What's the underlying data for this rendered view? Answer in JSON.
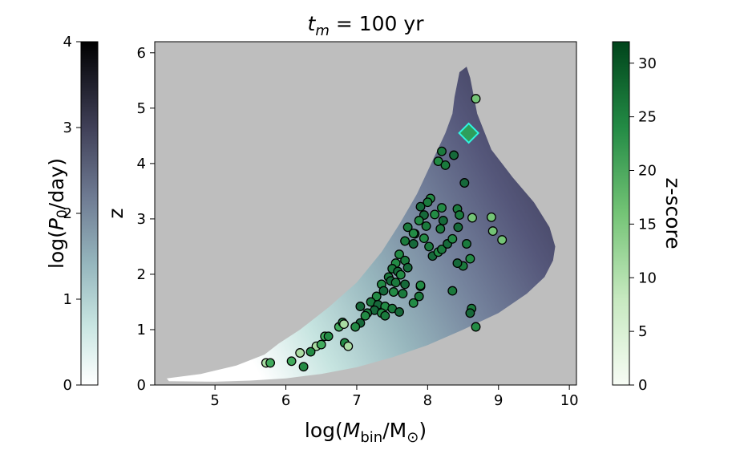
{
  "chart_data": {
    "type": "scatter",
    "title": "t_m = 100 yr",
    "title_parts": {
      "var": "t",
      "sub": "m",
      "rest": " = 100 yr"
    },
    "xlabel": "log(M_bin/M_⊙)",
    "xlabel_parts": {
      "pre": "log(",
      "var": "M",
      "sub": "bin",
      "post": "/M",
      "sun": "⊙",
      "close": ")"
    },
    "ylabel": "z",
    "xlim": [
      4.15,
      10.1
    ],
    "ylim": [
      0,
      6.2
    ],
    "xticks": [
      "5",
      "6",
      "7",
      "8",
      "9",
      "10"
    ],
    "yticks": [
      "0",
      "1",
      "2",
      "3",
      "4",
      "5",
      "6"
    ],
    "background_color": "#bebebe",
    "region": {
      "description": "allowed parameter space shaded by log(P0/day)",
      "boundary": [
        [
          4.32,
          0.12
        ],
        [
          4.35,
          0.07
        ],
        [
          5.0,
          0.06
        ],
        [
          5.5,
          0.08
        ],
        [
          6.0,
          0.12
        ],
        [
          6.5,
          0.2
        ],
        [
          7.0,
          0.32
        ],
        [
          7.5,
          0.5
        ],
        [
          8.0,
          0.72
        ],
        [
          8.5,
          1.0
        ],
        [
          9.0,
          1.3
        ],
        [
          9.4,
          1.65
        ],
        [
          9.65,
          1.95
        ],
        [
          9.77,
          2.25
        ],
        [
          9.8,
          2.5
        ],
        [
          9.72,
          2.85
        ],
        [
          9.5,
          3.3
        ],
        [
          9.2,
          3.75
        ],
        [
          8.9,
          4.25
        ],
        [
          8.7,
          4.9
        ],
        [
          8.6,
          5.55
        ],
        [
          8.55,
          5.75
        ],
        [
          8.45,
          5.65
        ],
        [
          8.38,
          5.2
        ],
        [
          8.35,
          4.9
        ],
        [
          8.25,
          4.55
        ],
        [
          8.05,
          4.0
        ],
        [
          7.85,
          3.45
        ],
        [
          7.6,
          2.9
        ],
        [
          7.35,
          2.4
        ],
        [
          7.0,
          1.85
        ],
        [
          6.6,
          1.4
        ],
        [
          6.2,
          1.0
        ],
        [
          5.9,
          0.75
        ],
        [
          5.7,
          0.55
        ],
        [
          5.3,
          0.35
        ],
        [
          4.8,
          0.2
        ],
        [
          4.32,
          0.12
        ]
      ]
    },
    "highlight_marker": {
      "shape": "diamond",
      "x": 8.58,
      "y": 4.55,
      "color": "#2e9e5b",
      "edge": "#2ff5e0"
    },
    "points": [
      [
        8.68,
        5.17
      ],
      [
        8.2,
        4.22
      ],
      [
        8.37,
        4.15
      ],
      [
        8.15,
        4.04
      ],
      [
        8.25,
        3.97
      ],
      [
        8.52,
        3.65
      ],
      [
        8.04,
        3.37
      ],
      [
        8.0,
        3.3
      ],
      [
        7.9,
        3.22
      ],
      [
        8.2,
        3.2
      ],
      [
        8.42,
        3.18
      ],
      [
        7.95,
        3.07
      ],
      [
        8.1,
        3.08
      ],
      [
        8.45,
        3.07
      ],
      [
        8.63,
        3.02
      ],
      [
        7.88,
        2.97
      ],
      [
        7.98,
        2.87
      ],
      [
        8.22,
        2.97
      ],
      [
        8.9,
        3.03
      ],
      [
        7.72,
        2.85
      ],
      [
        7.82,
        2.73
      ],
      [
        7.8,
        2.74
      ],
      [
        8.18,
        2.82
      ],
      [
        8.43,
        2.85
      ],
      [
        8.92,
        2.78
      ],
      [
        7.68,
        2.6
      ],
      [
        7.8,
        2.55
      ],
      [
        7.95,
        2.65
      ],
      [
        8.02,
        2.5
      ],
      [
        8.07,
        2.33
      ],
      [
        8.15,
        2.4
      ],
      [
        8.2,
        2.45
      ],
      [
        8.28,
        2.55
      ],
      [
        8.35,
        2.64
      ],
      [
        8.55,
        2.55
      ],
      [
        9.05,
        2.62
      ],
      [
        7.6,
        2.36
      ],
      [
        7.68,
        2.25
      ],
      [
        7.72,
        2.12
      ],
      [
        7.55,
        2.2
      ],
      [
        7.5,
        2.1
      ],
      [
        7.58,
        2.05
      ],
      [
        7.62,
        1.99
      ],
      [
        7.45,
        1.95
      ],
      [
        7.48,
        1.88
      ],
      [
        7.35,
        1.82
      ],
      [
        7.55,
        1.85
      ],
      [
        7.68,
        1.82
      ],
      [
        7.52,
        1.68
      ],
      [
        7.65,
        1.65
      ],
      [
        7.38,
        1.7
      ],
      [
        7.28,
        1.6
      ],
      [
        7.2,
        1.5
      ],
      [
        7.3,
        1.45
      ],
      [
        7.4,
        1.42
      ],
      [
        7.5,
        1.38
      ],
      [
        7.25,
        1.35
      ],
      [
        7.35,
        1.3
      ],
      [
        7.15,
        1.3
      ],
      [
        7.05,
        1.42
      ],
      [
        7.12,
        1.25
      ],
      [
        7.4,
        1.25
      ],
      [
        7.6,
        1.32
      ],
      [
        7.8,
        1.48
      ],
      [
        7.88,
        1.6
      ],
      [
        7.9,
        1.78
      ],
      [
        7.9,
        1.8
      ],
      [
        8.5,
        2.15
      ],
      [
        8.42,
        2.2
      ],
      [
        8.6,
        2.28
      ],
      [
        8.62,
        1.38
      ],
      [
        8.6,
        1.3
      ],
      [
        8.68,
        1.05
      ],
      [
        8.35,
        1.7
      ],
      [
        7.05,
        1.12
      ],
      [
        6.98,
        1.05
      ],
      [
        6.75,
        1.05
      ],
      [
        6.8,
        1.13
      ],
      [
        6.82,
        1.1
      ],
      [
        6.55,
        0.88
      ],
      [
        6.6,
        0.88
      ],
      [
        6.43,
        0.7
      ],
      [
        6.5,
        0.73
      ],
      [
        6.35,
        0.6
      ],
      [
        6.2,
        0.58
      ],
      [
        6.08,
        0.43
      ],
      [
        6.25,
        0.33
      ],
      [
        5.72,
        0.4
      ],
      [
        5.78,
        0.4
      ],
      [
        6.83,
        0.76
      ],
      [
        6.88,
        0.7
      ]
    ],
    "left_colorbar": {
      "label": "log(P_0/day)",
      "label_parts": {
        "pre": "log(",
        "var": "P",
        "sub": "0",
        "post": "/day)"
      },
      "range": [
        0,
        4
      ],
      "ticks": [
        "0",
        "1",
        "2",
        "3",
        "4"
      ]
    },
    "right_colorbar": {
      "label": "z-score",
      "range": [
        0,
        32
      ],
      "ticks": [
        "0",
        "5",
        "10",
        "15",
        "20",
        "25",
        "30"
      ]
    }
  }
}
